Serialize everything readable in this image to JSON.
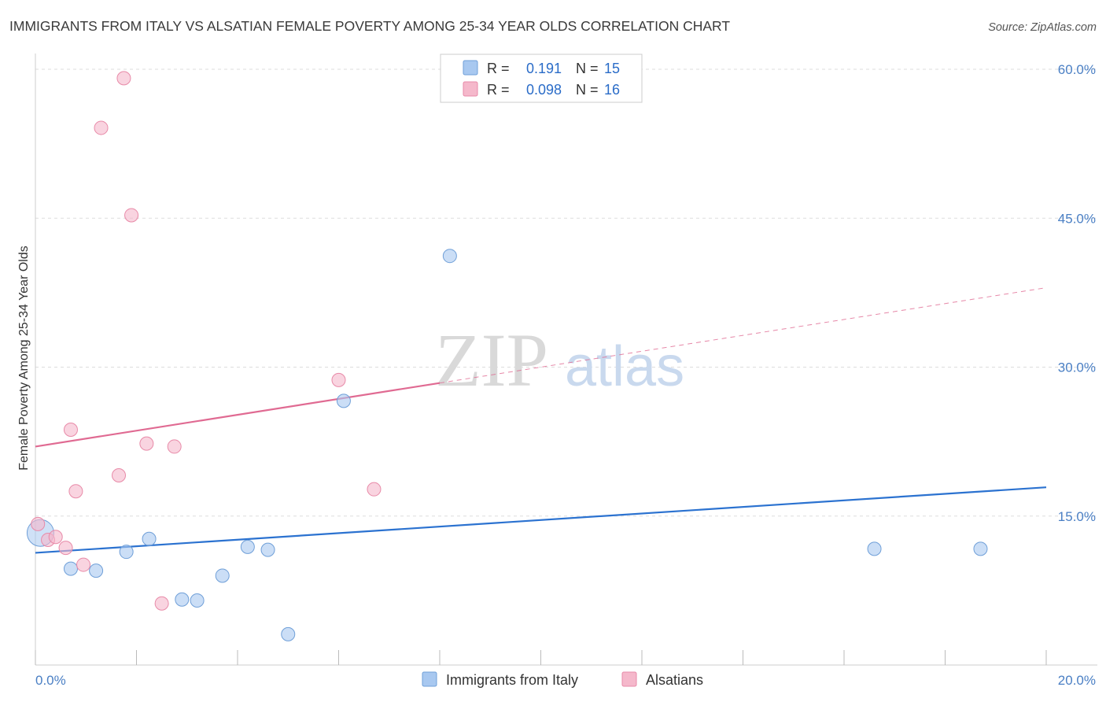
{
  "header": {
    "title": "IMMIGRANTS FROM ITALY VS ALSATIAN FEMALE POVERTY AMONG 25-34 YEAR OLDS CORRELATION CHART",
    "source": "Source: ZipAtlas.com"
  },
  "watermark": {
    "zip": "ZIP",
    "atlas": "atlas"
  },
  "stats_legend": {
    "rows": [
      {
        "r_label": "R =",
        "r_value": "0.191",
        "n_label": "N =",
        "n_value": "15",
        "color": "#a8c8f0"
      },
      {
        "r_label": "R =",
        "r_value": "0.098",
        "n_label": "N =",
        "n_value": "16",
        "color": "#f5b8cb"
      }
    ]
  },
  "chart_data": {
    "type": "scatter",
    "title": "IMMIGRANTS FROM ITALY VS ALSATIAN FEMALE POVERTY AMONG 25-34 YEAR OLDS CORRELATION CHART",
    "xlabel": "",
    "ylabel": "Female Poverty Among 25-34 Year Olds",
    "xlim": [
      0,
      20
    ],
    "ylim": [
      0,
      63
    ],
    "x_tick_labels": [
      "0.0%",
      "20.0%"
    ],
    "y_ticks": [
      15,
      30,
      45,
      60
    ],
    "y_tick_labels": [
      "15.0%",
      "30.0%",
      "45.0%",
      "60.0%"
    ],
    "grid": true,
    "legend_position": "bottom",
    "series": [
      {
        "name": "Immigrants from Italy",
        "color": "#a8c8f0",
        "stroke": "#6f9fd8",
        "line_color": "#2b72d0",
        "points": [
          {
            "x": 0.1,
            "y": 13.3,
            "big": true
          },
          {
            "x": 0.7,
            "y": 9.7
          },
          {
            "x": 1.2,
            "y": 9.5
          },
          {
            "x": 1.8,
            "y": 11.4
          },
          {
            "x": 2.25,
            "y": 12.7
          },
          {
            "x": 2.9,
            "y": 6.6
          },
          {
            "x": 3.2,
            "y": 6.5
          },
          {
            "x": 3.7,
            "y": 9.0
          },
          {
            "x": 4.2,
            "y": 11.9
          },
          {
            "x": 4.6,
            "y": 11.6
          },
          {
            "x": 5.0,
            "y": 3.1
          },
          {
            "x": 6.1,
            "y": 26.6
          },
          {
            "x": 8.2,
            "y": 41.2
          },
          {
            "x": 16.6,
            "y": 11.7
          },
          {
            "x": 18.7,
            "y": 11.7
          }
        ],
        "trend": {
          "x1": 0,
          "y1": 11.3,
          "x2": 20,
          "y2": 17.9,
          "dashed_from": null
        }
      },
      {
        "name": "Alsatians",
        "color": "#f5b8cb",
        "stroke": "#e88aa8",
        "line_color": "#e06a92",
        "points": [
          {
            "x": 0.05,
            "y": 14.2
          },
          {
            "x": 0.25,
            "y": 12.6
          },
          {
            "x": 0.4,
            "y": 12.9
          },
          {
            "x": 0.6,
            "y": 11.8
          },
          {
            "x": 0.7,
            "y": 23.7
          },
          {
            "x": 0.8,
            "y": 17.5
          },
          {
            "x": 0.95,
            "y": 10.1
          },
          {
            "x": 1.3,
            "y": 54.1
          },
          {
            "x": 1.65,
            "y": 19.1
          },
          {
            "x": 1.75,
            "y": 59.1
          },
          {
            "x": 1.9,
            "y": 45.3
          },
          {
            "x": 2.2,
            "y": 22.3
          },
          {
            "x": 2.5,
            "y": 6.2
          },
          {
            "x": 2.75,
            "y": 22.0
          },
          {
            "x": 6.0,
            "y": 28.7
          },
          {
            "x": 6.7,
            "y": 17.7
          }
        ],
        "trend": {
          "x1": 0,
          "y1": 22.0,
          "x2": 20,
          "y2": 38.0,
          "dashed_from": 8.0
        }
      }
    ]
  },
  "bottom_legend": {
    "items": [
      {
        "label": "Immigrants from Italy",
        "color": "#a8c8f0",
        "stroke": "#6f9fd8"
      },
      {
        "label": "Alsatians",
        "color": "#f5b8cb",
        "stroke": "#e88aa8"
      }
    ]
  }
}
